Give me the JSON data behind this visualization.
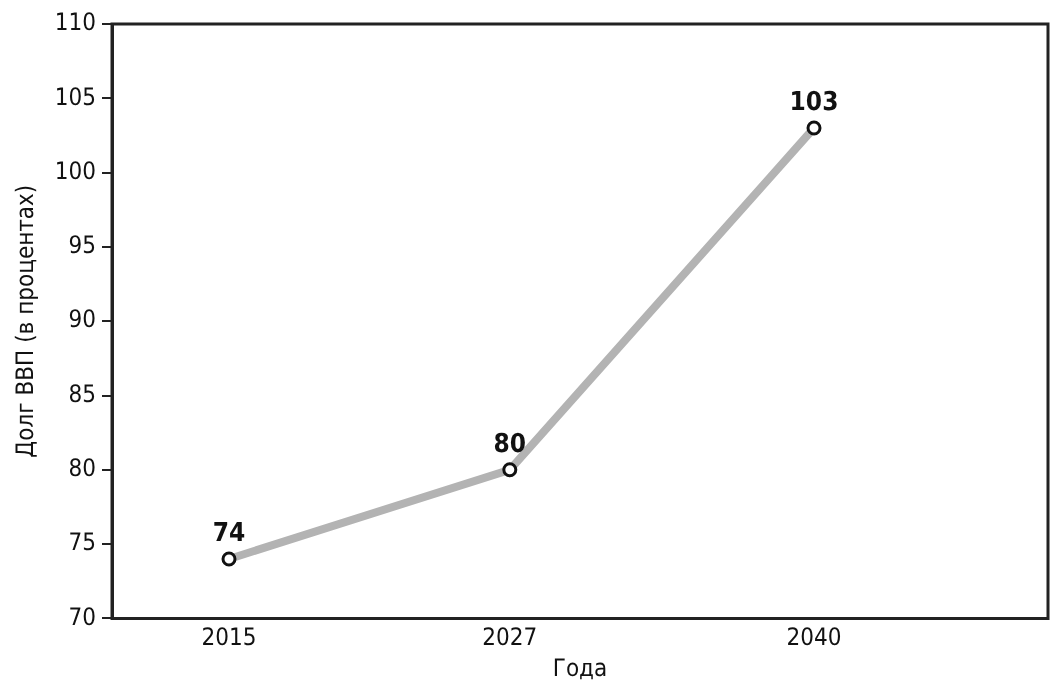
{
  "chart_data": {
    "type": "line",
    "xlabel": "Года",
    "ylabel": "Долг ВВП (в процентах)",
    "x": [
      2015,
      2027,
      2040
    ],
    "series": [
      {
        "color": "#b3b3b3",
        "values": [
          74,
          80,
          103
        ]
      }
    ],
    "xlim": [
      2010,
      2050
    ],
    "xticks": [
      2015,
      2027,
      2040
    ],
    "ylim": [
      70,
      110
    ],
    "yticks": [
      70,
      75,
      80,
      85,
      90,
      95,
      100,
      105,
      110
    ],
    "grid": false,
    "legend": false,
    "marker": "circle",
    "line_style": "solid",
    "data_labels": true
  }
}
